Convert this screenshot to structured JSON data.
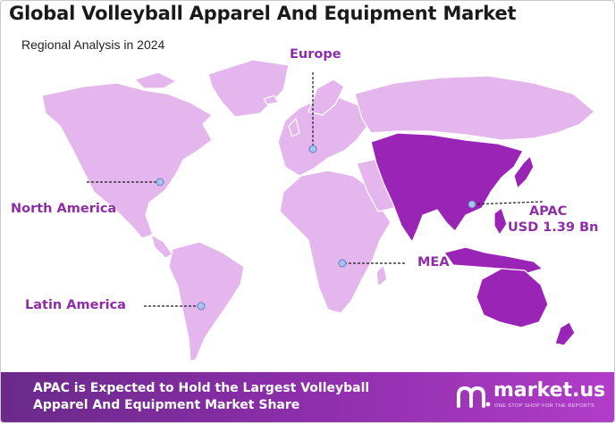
{
  "header": {
    "title": "Global Volleyball Apparel And Equipment Market",
    "subtitle": "Regional Analysis in 2024"
  },
  "regions": [
    {
      "key": "europe",
      "label": "Europe"
    },
    {
      "key": "north_america",
      "label": "North America"
    },
    {
      "key": "apac",
      "label": "APAC",
      "value": "USD 1.39 Bn"
    },
    {
      "key": "mea",
      "label": "MEA"
    },
    {
      "key": "latin_america",
      "label": "Latin America"
    }
  ],
  "highlight_region": "apac",
  "colors": {
    "land": "#e5b6ee",
    "highlight": "#9a24b5",
    "label": "#8e2ea6",
    "marker": "#a9c4ee"
  },
  "footer": {
    "text": "APAC is Expected to Hold the Largest Volleyball Apparel And Equipment Market Share",
    "brand_name": "market.us",
    "brand_tagline": "ONE STOP SHOP FOR THE REPORTS"
  }
}
